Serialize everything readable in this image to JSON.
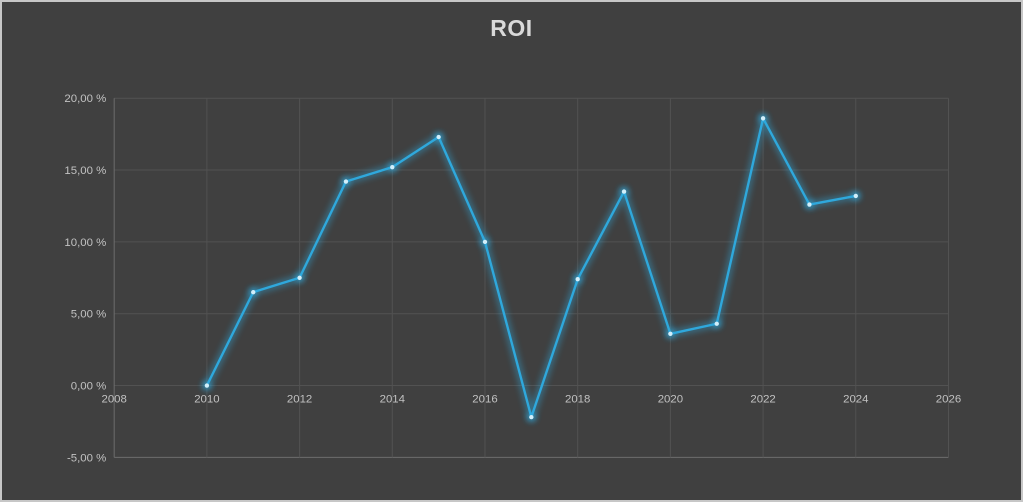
{
  "window": {
    "background_color": "#404040",
    "border_color": "#c7c7c7"
  },
  "chart_data": {
    "type": "line",
    "title": "ROI",
    "title_color": "#d9d9d9",
    "xlabel": "",
    "ylabel": "",
    "xlim": [
      2008,
      2026
    ],
    "ylim": [
      -5,
      20
    ],
    "grid": true,
    "legend": "none",
    "gridline_color": "#525252",
    "axis_line_color": "#6d6d6d",
    "tick_label_color": "#c2c2c2",
    "x_ticks": [
      {
        "value": 2008,
        "label": "2008"
      },
      {
        "value": 2010,
        "label": "2010"
      },
      {
        "value": 2012,
        "label": "2012"
      },
      {
        "value": 2014,
        "label": "2014"
      },
      {
        "value": 2016,
        "label": "2016"
      },
      {
        "value": 2018,
        "label": "2018"
      },
      {
        "value": 2020,
        "label": "2020"
      },
      {
        "value": 2022,
        "label": "2022"
      },
      {
        "value": 2024,
        "label": "2024"
      },
      {
        "value": 2026,
        "label": "2026"
      }
    ],
    "y_ticks": [
      {
        "value": 20,
        "label": "20,00 %"
      },
      {
        "value": 15,
        "label": "15,00 %"
      },
      {
        "value": 10,
        "label": "10,00 %"
      },
      {
        "value": 5,
        "label": "5,00 %"
      },
      {
        "value": 0,
        "label": "0,00 %"
      },
      {
        "value": -5,
        "label": "-5,00 %"
      }
    ],
    "series": [
      {
        "name": "ROI",
        "color": "#2fa8dc",
        "marker_color": "#d2effb",
        "x": [
          2010,
          2011,
          2012,
          2013,
          2014,
          2015,
          2016,
          2017,
          2018,
          2019,
          2020,
          2021,
          2022,
          2023,
          2024
        ],
        "values": [
          0.0,
          6.5,
          7.5,
          14.2,
          15.2,
          17.3,
          10.0,
          -2.2,
          7.4,
          13.5,
          3.6,
          4.3,
          18.6,
          12.6,
          13.2
        ]
      }
    ]
  }
}
